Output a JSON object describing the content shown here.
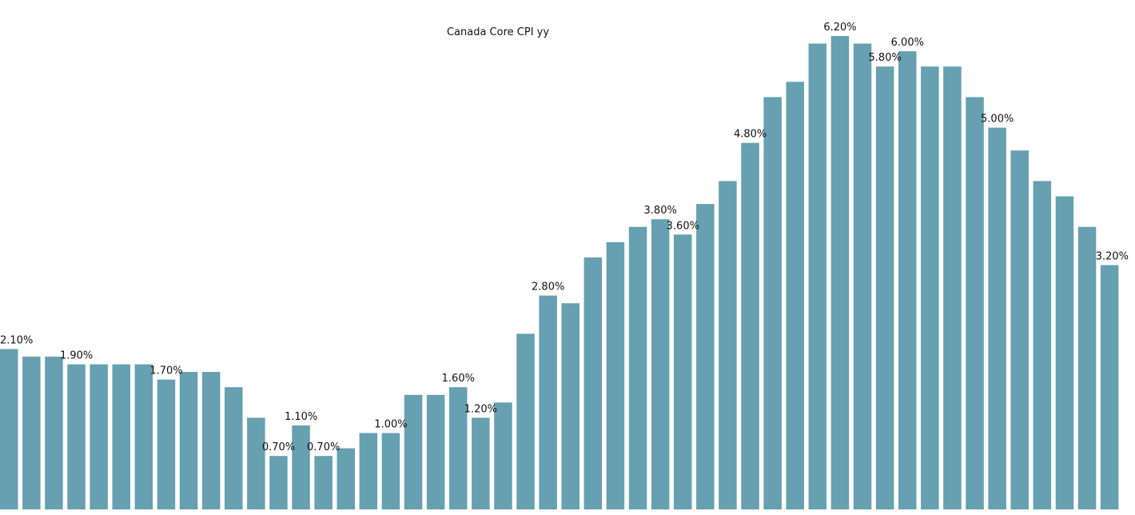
{
  "chart_data": {
    "type": "bar",
    "title": "Canada Core CPI yy",
    "xlabel": "",
    "ylabel": "",
    "ylim": [
      0,
      6.2
    ],
    "grid": false,
    "legend": "none",
    "bar_color": "#66a0b1",
    "values": [
      2.1,
      2.0,
      2.0,
      1.9,
      1.9,
      1.9,
      1.9,
      1.7,
      1.8,
      1.8,
      1.6,
      1.2,
      0.7,
      1.1,
      0.7,
      0.8,
      1.0,
      1.0,
      1.5,
      1.5,
      1.6,
      1.2,
      1.4,
      2.3,
      2.8,
      2.7,
      3.3,
      3.5,
      3.7,
      3.8,
      3.6,
      4.0,
      4.3,
      4.8,
      5.4,
      5.6,
      6.1,
      6.2,
      6.1,
      5.8,
      6.0,
      5.8,
      5.8,
      5.4,
      5.0,
      4.7,
      4.3,
      4.1,
      3.7,
      3.2
    ],
    "data_labels": [
      {
        "index": 0,
        "text": "2.10%"
      },
      {
        "index": 3,
        "text": "1.90%"
      },
      {
        "index": 7,
        "text": "1.70%"
      },
      {
        "index": 12,
        "text": "0.70%"
      },
      {
        "index": 13,
        "text": "1.10%"
      },
      {
        "index": 14,
        "text": "0.70%"
      },
      {
        "index": 17,
        "text": "1.00%"
      },
      {
        "index": 20,
        "text": "1.60%"
      },
      {
        "index": 21,
        "text": "1.20%"
      },
      {
        "index": 24,
        "text": "2.80%"
      },
      {
        "index": 29,
        "text": "3.80%"
      },
      {
        "index": 30,
        "text": "3.60%"
      },
      {
        "index": 33,
        "text": "4.80%"
      },
      {
        "index": 37,
        "text": "6.20%"
      },
      {
        "index": 39,
        "text": "5.80%"
      },
      {
        "index": 40,
        "text": "6.00%"
      },
      {
        "index": 44,
        "text": "5.00%"
      },
      {
        "index": 49,
        "text": "3.20%"
      }
    ]
  }
}
